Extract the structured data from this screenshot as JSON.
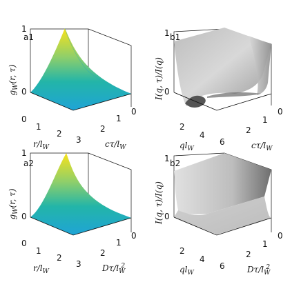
{
  "chart_data": [
    {
      "panel": "a1",
      "type": "surface",
      "zlabel": "g_W(r,τ)",
      "xlabel": "r/l_W",
      "ylabel": "cτ/l_W",
      "zticks": [
        "0",
        "1"
      ],
      "xticks": [
        "0",
        "1",
        "2",
        "3"
      ],
      "yticks": [
        "0",
        "1",
        "2"
      ],
      "xlim": [
        0,
        3
      ],
      "ylim": [
        0,
        2.5
      ],
      "zlim": [
        0,
        1
      ],
      "colormap": [
        "#1fa4d6",
        "#20b1b0",
        "#7fc97f",
        "#e5cf35",
        "#f7e31a"
      ],
      "description_values": {
        "peak": 1,
        "baseline": 0
      }
    },
    {
      "panel": "b1",
      "type": "surface",
      "zlabel": "I(q,τ)/I(q)",
      "xlabel": "ql_W",
      "ylabel": "cτ/l_W",
      "zticks": [
        "0",
        "1"
      ],
      "xticks": [
        "2",
        "4",
        "6"
      ],
      "yticks": [
        "0",
        "1",
        "2"
      ],
      "xlim": [
        0.5,
        6.5
      ],
      "ylim": [
        0,
        2.5
      ],
      "zlim": [
        0,
        1
      ],
      "colormap": [
        "#4a4a4a",
        "#dcdcdc"
      ]
    },
    {
      "panel": "a2",
      "type": "surface",
      "zlabel": "g_W(r,τ)",
      "xlabel": "r/l_W",
      "ylabel": "Dτ/l_W^2",
      "zticks": [
        "0",
        "1"
      ],
      "xticks": [
        "0",
        "1",
        "2",
        "3"
      ],
      "yticks": [
        "0",
        "1",
        "2"
      ],
      "xlim": [
        0,
        3
      ],
      "ylim": [
        0,
        2.5
      ],
      "zlim": [
        0,
        1
      ],
      "colormap": [
        "#1fa4d6",
        "#20b1b0",
        "#7fc97f",
        "#e5cf35",
        "#f7e31a"
      ]
    },
    {
      "panel": "b2",
      "type": "surface",
      "zlabel": "I(q,τ)/I(q)",
      "xlabel": "ql_W",
      "ylabel": "Dτ/l_W^2",
      "zticks": [
        "0",
        "1"
      ],
      "xticks": [
        "2",
        "4",
        "6"
      ],
      "yticks": [
        "0",
        "1",
        "2"
      ],
      "xlim": [
        0.5,
        6.5
      ],
      "ylim": [
        0,
        2.5
      ],
      "zlim": [
        0,
        1
      ],
      "colormap": [
        "#4a4a4a",
        "#dcdcdc"
      ]
    }
  ],
  "labels": {
    "a1": "a1",
    "b1": "b1",
    "a2": "a2",
    "b2": "b2"
  }
}
